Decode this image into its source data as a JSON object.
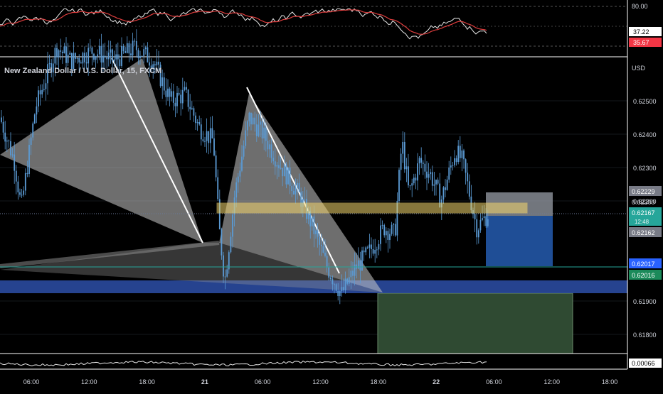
{
  "chart_title": "New Zealand Dollar / U.S. Dollar, 15, FXCM",
  "currency_label": "USD",
  "colors": {
    "background": "#000000",
    "grid": "#2a2e39",
    "axis_text": "#d1d4dc",
    "candle": "#5b9bd5",
    "harmonic_fill": "#c8c8c8",
    "harmonic_line": "#ffffff",
    "yellow_zone": "#f5d76e",
    "blue_zone": "#2d4fa8",
    "long_stop": "#1f4e96",
    "long_target": "#b0b3bb",
    "bottom_green": "#2f4a32",
    "rsi_line": "#e8e8e8",
    "rsi_ma": "#e03e3e",
    "cyan_line": "#26a69a"
  },
  "chart_data": {
    "type": "candlestick",
    "price_axis": {
      "ylim": [
        0.6175,
        0.627
      ],
      "ticks": [
        "0.62500",
        "0.62400",
        "0.62300",
        "0.62200",
        "0.61900",
        "0.61800"
      ],
      "tick_values": [
        0.625,
        0.624,
        0.623,
        0.622,
        0.619,
        0.618
      ]
    },
    "time_axis": {
      "labels": [
        "06:00",
        "12:00",
        "18:00",
        "21",
        "06:00",
        "12:00",
        "18:00",
        "22",
        "06:00",
        "12:00",
        "18:00"
      ],
      "bold": [
        false,
        false,
        false,
        true,
        false,
        false,
        false,
        true,
        false,
        false,
        false
      ]
    },
    "price_labels": [
      {
        "value": 0.62229,
        "text": "0.62229",
        "style": "gray"
      },
      {
        "value": 0.622,
        "text": "0.62200",
        "style": "plain"
      },
      {
        "value": 0.62167,
        "text": "0.62167",
        "sub": "12:48",
        "style": "teal"
      },
      {
        "value": 0.62162,
        "text": "0.62162",
        "style": "gray"
      },
      {
        "value": 0.62017,
        "text": "0.62017",
        "style": "blue"
      },
      {
        "value": 0.62016,
        "text": "0.62016",
        "style": "green"
      }
    ],
    "harmonic_patterns": [
      {
        "points": [
          [
            "04:00",
            0.624
          ],
          [
            "16:00",
            0.6272
          ],
          [
            "23:30",
            0.6206
          ],
          [
            "03:00",
            0.6251
          ],
          [
            "17:45",
            0.6194
          ]
        ]
      }
    ],
    "yellow_zone": {
      "low": 0.62175,
      "high": 0.62195
    },
    "blue_zone": {
      "low": 0.61948,
      "high": 0.61968
    },
    "rsi": {
      "ticks": [
        "80.00"
      ],
      "labels": [
        {
          "text": "37.22",
          "style": "white"
        },
        {
          "text": "35.67",
          "style": "red"
        }
      ]
    },
    "bottom_indicator": {
      "label": "0.00066"
    }
  }
}
